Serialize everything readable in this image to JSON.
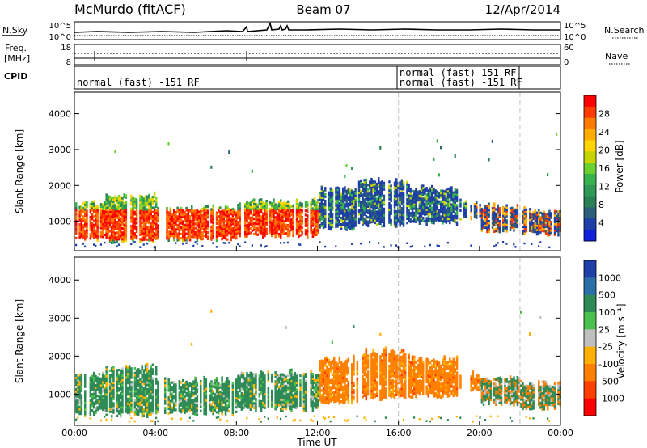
{
  "header": {
    "station": "McMurdo (fitACF)",
    "beam": "Beam 07",
    "date": "12/Apr/2014"
  },
  "status_panels": {
    "left_labels": {
      "nsky": "N.Sky",
      "freq_line1": "Freq.",
      "freq_line2": "[MHz]",
      "cpid": "CPID"
    },
    "right_labels": {
      "nsearch": "N.Search",
      "nave": "Nave"
    },
    "noise_ticks_left": [
      "10^5",
      "10^0"
    ],
    "noise_ticks_right": [
      "10^5",
      "10^0"
    ],
    "freq_ticks": [
      "18",
      "8"
    ],
    "nave_ticks": [
      "60",
      "0"
    ],
    "cpid_labels": [
      "normal (fast) -151 RF",
      "normal (fast) 151 RF",
      "normal (fast) -151 RF"
    ]
  },
  "chart_data": [
    {
      "type": "heatmap",
      "title": "",
      "ylabel": "Slant Range [km]",
      "xlabel": "",
      "ylim": [
        180,
        4600
      ],
      "yticks": [
        "1000",
        "2000",
        "3000",
        "4000"
      ],
      "xlim_hours": [
        0,
        24
      ],
      "colorbar": {
        "label": "Power [dB]",
        "ticks": [
          "28",
          "24",
          "20",
          "16",
          "12",
          "8",
          "4"
        ],
        "colors": [
          "#ff0000",
          "#ff3b00",
          "#ff7a00",
          "#ffae00",
          "#ffd400",
          "#c8d400",
          "#6cd030",
          "#37b24d",
          "#2e9a55",
          "#2b7f55",
          "#2b5f7a",
          "#1f3fa8",
          "#1020d8"
        ]
      },
      "description_bands": [
        {
          "from_hour": 0,
          "to_hour": 12,
          "range_km": [
            600,
            1300
          ],
          "level": "high (24-30 dB)"
        },
        {
          "from_hour": 12,
          "to_hour": 19,
          "range_km": [
            900,
            2100
          ],
          "level": "low (4-12 dB)"
        },
        {
          "from_hour": 20,
          "to_hour": 24,
          "range_km": [
            700,
            1400
          ],
          "level": "mixed (8-28 dB)"
        }
      ]
    },
    {
      "type": "heatmap",
      "title": "",
      "ylabel": "Slant Range [km]",
      "xlabel": "Time UT",
      "ylim": [
        180,
        4600
      ],
      "yticks": [
        "1000",
        "2000",
        "3000",
        "4000"
      ],
      "xticks": [
        "00:00",
        "04:00",
        "08:00",
        "12:00",
        "16:00",
        "20:00",
        "00:00"
      ],
      "colorbar": {
        "label": "Velocity [m s⁻¹]",
        "ticks": [
          "1000",
          "500",
          "100",
          "25",
          "-25",
          "-100",
          "-500",
          "-1000"
        ],
        "colors": [
          "#1e3fa8",
          "#2b6fa8",
          "#2e8b57",
          "#4cc04c",
          "#bfbfbf",
          "#ffb000",
          "#ff8000",
          "#ff4000",
          "#ff0000"
        ]
      },
      "description_bands": [
        {
          "from_hour": 0,
          "to_hour": 12,
          "range_km": [
            600,
            1400
          ],
          "level": "positive (100-500 m/s)"
        },
        {
          "from_hour": 12,
          "to_hour": 20,
          "range_km": [
            900,
            2100
          ],
          "level": "negative (-100 to -500 m/s)"
        },
        {
          "from_hour": 20,
          "to_hour": 24,
          "range_km": [
            700,
            1400
          ],
          "level": "mixed"
        }
      ]
    }
  ]
}
